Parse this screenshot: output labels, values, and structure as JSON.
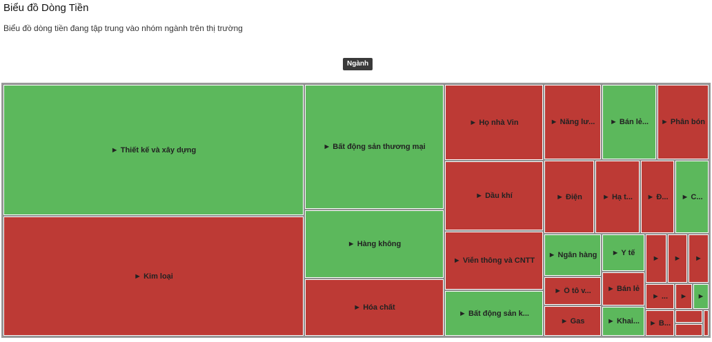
{
  "header": {
    "title": "Biểu đồ Dòng Tiền",
    "subtitle": "Biểu đồ dòng tiền đang tập trung vào nhóm ngành trên thị trường",
    "root_label": "Ngành"
  },
  "colors": {
    "positive": "#5cb85c",
    "negative": "#bd3a35"
  },
  "chart_data": {
    "type": "treemap",
    "root": "Ngành",
    "nodes": [
      {
        "label": "► Thiết kế và xây dựng",
        "status": "positive"
      },
      {
        "label": "► Kim loại",
        "status": "negative"
      },
      {
        "label": "► Bất động sản thương mại",
        "status": "positive"
      },
      {
        "label": "► Hàng không",
        "status": "positive"
      },
      {
        "label": "► Hóa chất",
        "status": "negative"
      },
      {
        "label": "► Họ nhà Vin",
        "status": "negative"
      },
      {
        "label": "► Dầu khí",
        "status": "negative"
      },
      {
        "label": "► Viễn thông và CNTT",
        "status": "negative"
      },
      {
        "label": "► Bất động sản k...",
        "status": "positive"
      },
      {
        "label": "► Năng lư...",
        "status": "negative"
      },
      {
        "label": "► Bán lẻ...",
        "status": "positive"
      },
      {
        "label": "► Phân bón",
        "status": "negative"
      },
      {
        "label": "► Điện",
        "status": "negative"
      },
      {
        "label": "► Hạ t...",
        "status": "negative"
      },
      {
        "label": "► Đ...",
        "status": "negative"
      },
      {
        "label": "► C...",
        "status": "positive"
      },
      {
        "label": "► Ngân hàng",
        "status": "positive"
      },
      {
        "label": "► Y tế",
        "status": "positive"
      },
      {
        "label": "►",
        "status": "negative"
      },
      {
        "label": "►",
        "status": "negative"
      },
      {
        "label": "►",
        "status": "negative"
      },
      {
        "label": "► Ô tô v...",
        "status": "negative"
      },
      {
        "label": "► Bán lẻ",
        "status": "negative"
      },
      {
        "label": "► ...",
        "status": "negative"
      },
      {
        "label": "►",
        "status": "negative"
      },
      {
        "label": "►",
        "status": "positive"
      },
      {
        "label": "► Gas",
        "status": "negative"
      },
      {
        "label": "► Khai...",
        "status": "positive"
      },
      {
        "label": "► B...",
        "status": "negative"
      },
      {
        "label": "",
        "status": "negative"
      },
      {
        "label": "",
        "status": "negative"
      },
      {
        "label": "",
        "status": "negative"
      }
    ]
  }
}
